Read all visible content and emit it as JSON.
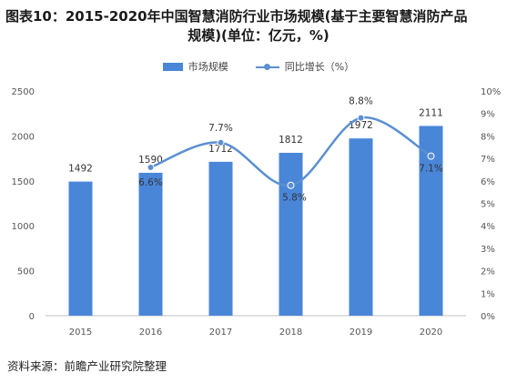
{
  "title": {
    "line1": "图表10：2015-2020年中国智慧消防行业市场规模(基于主要智慧消防产品",
    "line2": "规模)(单位：亿元，%)"
  },
  "legend": {
    "bar_label": "市场规模",
    "line_label": "同比增长（%）"
  },
  "source": "资料来源：前瞻产业研究院整理",
  "colors": {
    "bar": "#4a86d8",
    "line": "#5b8fd1"
  },
  "chart_data": {
    "type": "bar",
    "categories": [
      "2015",
      "2016",
      "2017",
      "2018",
      "2019",
      "2020"
    ],
    "series": [
      {
        "name": "市场规模",
        "type": "bar",
        "axis": "left",
        "values": [
          1492,
          1590,
          1712,
          1812,
          1972,
          2111
        ],
        "labels": [
          "1492",
          "1590",
          "1712",
          "1812",
          "1972",
          "2111"
        ]
      },
      {
        "name": "同比增长（%）",
        "type": "line",
        "axis": "right",
        "values": [
          null,
          6.6,
          7.7,
          5.8,
          8.8,
          7.1
        ],
        "labels": [
          "",
          "6.6%",
          "7.7%",
          "5.8%",
          "8.8%",
          "7.1%"
        ]
      }
    ],
    "y_left": {
      "min": 0,
      "max": 2500,
      "ticks": [
        "0",
        "500",
        "1000",
        "1500",
        "2000",
        "2500"
      ]
    },
    "y_right": {
      "min": 0,
      "max": 10,
      "ticks": [
        "0%",
        "1%",
        "2%",
        "3%",
        "4%",
        "5%",
        "6%",
        "7%",
        "8%",
        "9%",
        "10%"
      ]
    },
    "grid": false,
    "legend_position": "top-center"
  }
}
